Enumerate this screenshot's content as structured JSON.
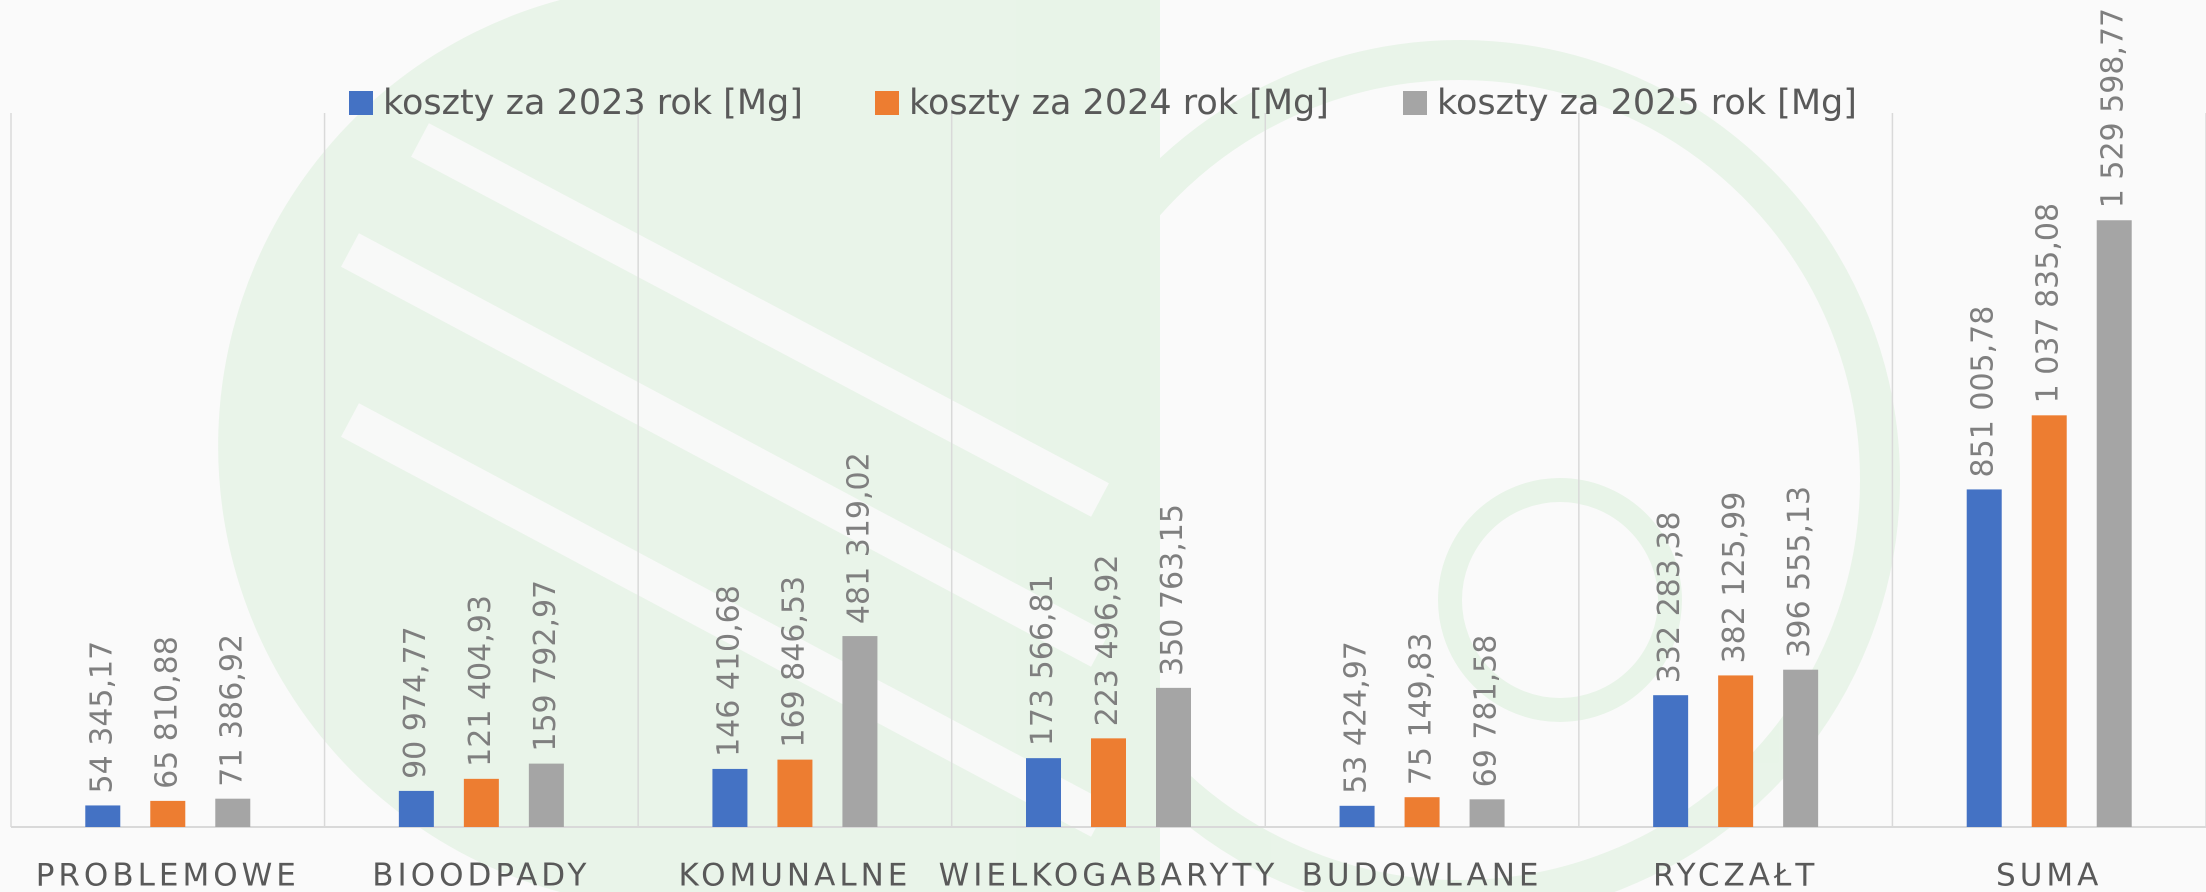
{
  "chart_data": {
    "type": "bar",
    "categories": [
      "PROBLEMOWE",
      "BIOODPADY",
      "KOMUNALNE",
      "WIELKOGABARYTY",
      "BUDOWLANE",
      "RYCZAŁT",
      "SUMA"
    ],
    "series": [
      {
        "name": "koszty za 2023 rok [Mg]",
        "color": "#4472c4",
        "values": [
          54345.17,
          90974.77,
          146410.68,
          173566.81,
          53424.97,
          332283.38,
          851005.78
        ],
        "value_labels": [
          "54 345,17",
          "90 974,77",
          "146 410,68",
          "173 566,81",
          "53 424,97",
          "332 283,38",
          "851 005,78"
        ]
      },
      {
        "name": "koszty za 2024 rok [Mg]",
        "color": "#ed7d31",
        "values": [
          65810.88,
          121404.93,
          169846.53,
          223496.92,
          75149.83,
          382125.99,
          1037835.08
        ],
        "value_labels": [
          "65 810,88",
          "121 404,93",
          "169 846,53",
          "223 496,92",
          "75 149,83",
          "382 125,99",
          "1 037 835,08"
        ]
      },
      {
        "name": "koszty za 2025 rok [Mg]",
        "color": "#a5a5a5",
        "values": [
          71386.92,
          159792.97,
          481319.02,
          350763.15,
          69781.58,
          396555.13,
          1529598.77
        ],
        "value_labels": [
          "71 386,92",
          "159 792,97",
          "481 319,02",
          "350 763,15",
          "69 781,58",
          "396 555,13",
          "1 529 598,77"
        ]
      }
    ],
    "ylim": [
      0,
      1800000
    ],
    "legend": "top",
    "grid": "category"
  }
}
